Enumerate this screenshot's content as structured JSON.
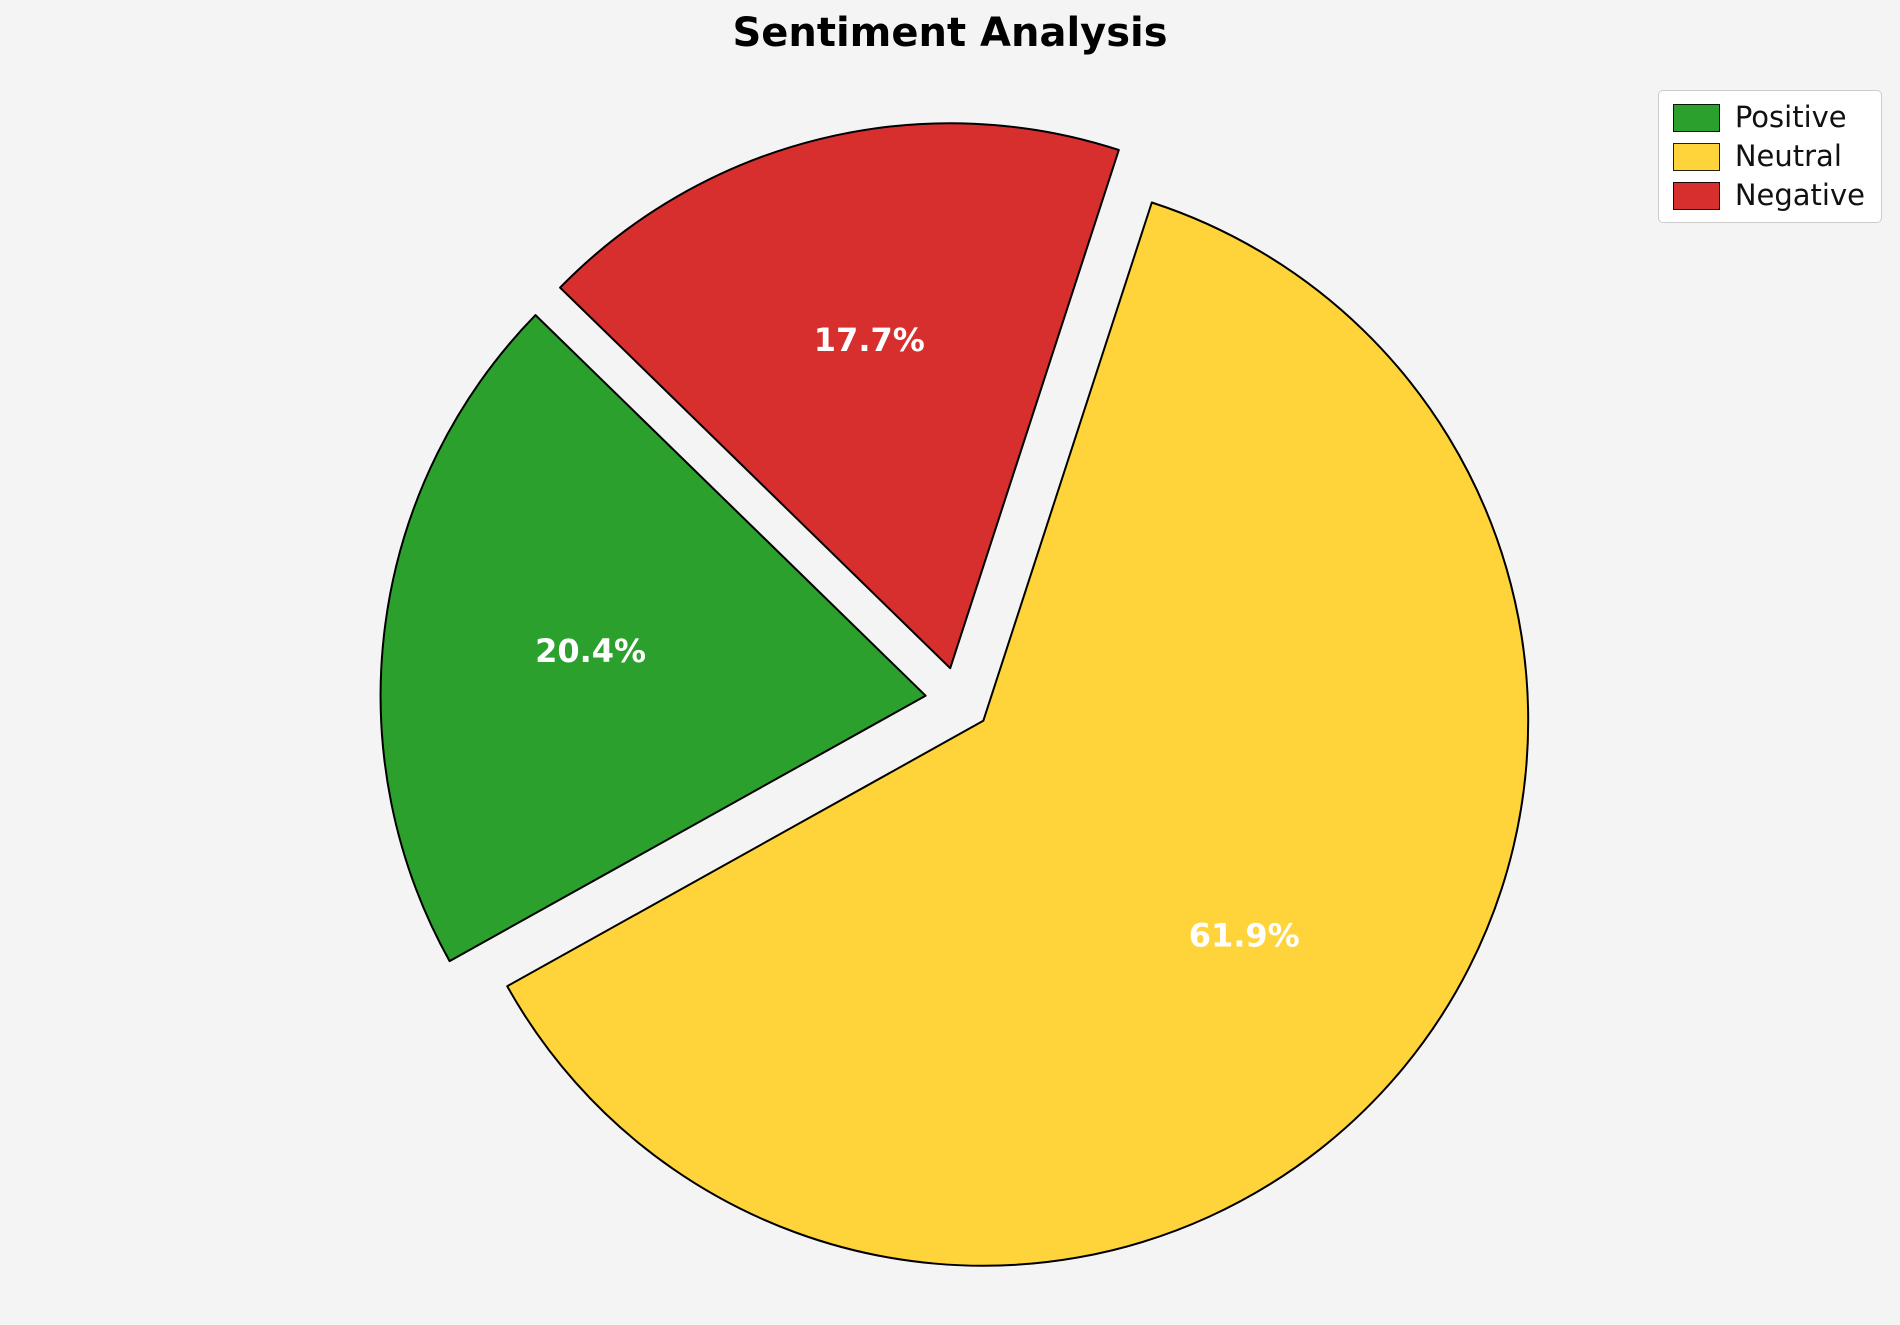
{
  "title": "Sentiment Analysis",
  "chart_data": {
    "type": "pie",
    "title": "Sentiment Analysis",
    "categories": [
      "Positive",
      "Neutral",
      "Negative"
    ],
    "values": [
      20.4,
      61.9,
      17.7
    ],
    "slice_labels": [
      "20.4%",
      "61.9%",
      "17.7%"
    ],
    "colors": [
      "#2ca02c",
      "#ffd43b",
      "#d62f2e"
    ],
    "edge_color": "#000000",
    "label_color": "#ffffff",
    "background_color": "#f4f4f4",
    "start_angle": 135.7,
    "direction": "counterclockwise",
    "explode": 0.06,
    "legend_position": "upper right",
    "legend_entries": [
      "Positive",
      "Neutral",
      "Negative"
    ]
  }
}
